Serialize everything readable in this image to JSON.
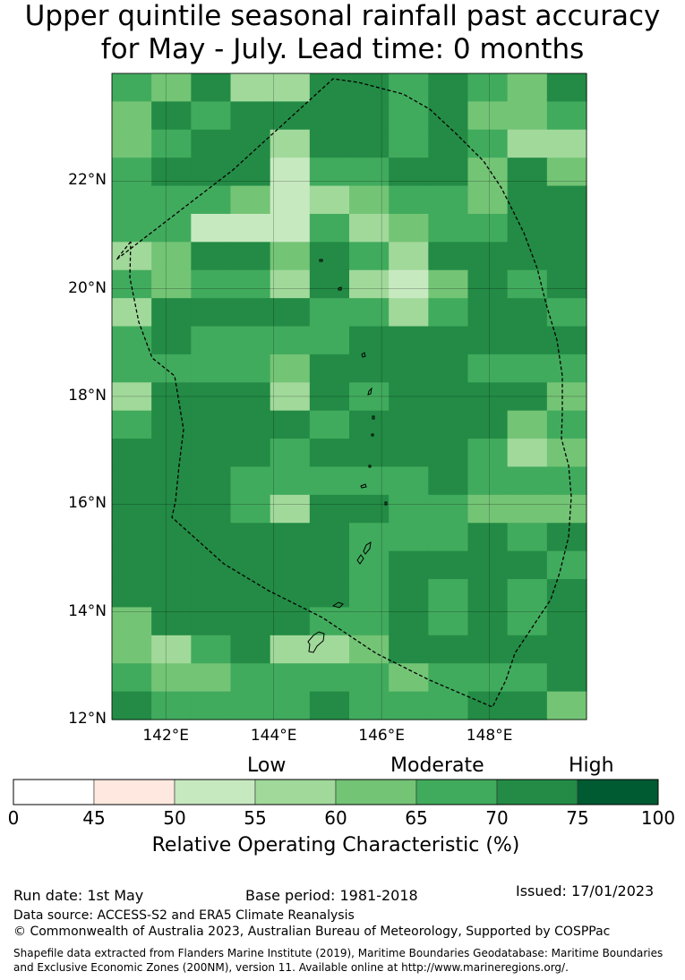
{
  "title": {
    "line1": "Upper quintile seasonal rainfall past accuracy",
    "line2": "for May - July. Lead time: 0 months"
  },
  "map": {
    "lat_labels": [
      "22°N",
      "20°N",
      "18°N",
      "16°N",
      "14°N",
      "12°N"
    ],
    "lon_labels": [
      "142°E",
      "144°E",
      "146°E",
      "148°E"
    ],
    "grid": [
      [
        5,
        4,
        6,
        3,
        3,
        6,
        6,
        5,
        6,
        5,
        4,
        6
      ],
      [
        4,
        6,
        5,
        6,
        6,
        6,
        6,
        5,
        6,
        4,
        4,
        5
      ],
      [
        4,
        5,
        6,
        6,
        3,
        6,
        6,
        5,
        6,
        5,
        3,
        3
      ],
      [
        5,
        6,
        6,
        6,
        2,
        5,
        5,
        6,
        6,
        4,
        6,
        4
      ],
      [
        5,
        5,
        5,
        4,
        2,
        3,
        4,
        5,
        5,
        4,
        6,
        6
      ],
      [
        5,
        5,
        2,
        2,
        2,
        5,
        3,
        4,
        5,
        5,
        6,
        6
      ],
      [
        3,
        4,
        6,
        6,
        4,
        6,
        5,
        3,
        6,
        6,
        6,
        6
      ],
      [
        5,
        4,
        5,
        5,
        3,
        6,
        3,
        2,
        4,
        6,
        5,
        6
      ],
      [
        3,
        6,
        6,
        6,
        6,
        5,
        5,
        3,
        5,
        6,
        6,
        5
      ],
      [
        5,
        6,
        5,
        5,
        5,
        5,
        6,
        6,
        6,
        6,
        6,
        6
      ],
      [
        5,
        5,
        5,
        5,
        4,
        6,
        6,
        6,
        6,
        5,
        5,
        5
      ],
      [
        3,
        6,
        6,
        6,
        3,
        6,
        5,
        6,
        6,
        6,
        6,
        4
      ],
      [
        5,
        6,
        6,
        6,
        6,
        5,
        6,
        6,
        6,
        6,
        4,
        5
      ],
      [
        6,
        6,
        6,
        6,
        5,
        6,
        6,
        6,
        6,
        5,
        3,
        4
      ],
      [
        6,
        6,
        6,
        5,
        5,
        5,
        5,
        5,
        6,
        5,
        5,
        5
      ],
      [
        6,
        6,
        6,
        5,
        3,
        6,
        6,
        5,
        5,
        4,
        4,
        4
      ],
      [
        6,
        6,
        6,
        6,
        6,
        6,
        5,
        5,
        5,
        6,
        5,
        6
      ],
      [
        6,
        6,
        6,
        6,
        6,
        6,
        5,
        6,
        6,
        6,
        6,
        5
      ],
      [
        6,
        6,
        6,
        6,
        6,
        6,
        5,
        6,
        5,
        6,
        5,
        6
      ],
      [
        4,
        6,
        6,
        6,
        6,
        5,
        5,
        6,
        5,
        6,
        5,
        6
      ],
      [
        4,
        3,
        5,
        6,
        3,
        3,
        4,
        6,
        6,
        6,
        6,
        6
      ],
      [
        5,
        4,
        4,
        5,
        5,
        5,
        5,
        4,
        5,
        5,
        5,
        6
      ],
      [
        6,
        5,
        5,
        5,
        5,
        6,
        5,
        5,
        5,
        6,
        6,
        4
      ]
    ],
    "boundary_label": "Exclusive Economic Zone (200NM)"
  },
  "colorbar": {
    "category_words": [
      "Low",
      "Moderate",
      "High"
    ],
    "ticks": [
      "0",
      "45",
      "50",
      "55",
      "60",
      "65",
      "70",
      "75",
      "100"
    ],
    "colors": [
      "#ffffff",
      "#fee8df",
      "#c7e9c0",
      "#a1d99b",
      "#74c476",
      "#41ab5d",
      "#238b45",
      "#005a32"
    ],
    "label": "Relative Operating Characteristic (%)"
  },
  "footer": {
    "run_date": "Run date: 1st May",
    "base_period": "Base period: 1981-2018",
    "issued": "Issued: 17/01/2023",
    "data_source": "Data source: ACCESS-S2 and ERA5 Climate Reanalysis",
    "copyright": "© Commonwealth of Australia 2023, Australian Bureau of Meteorology, Supported by COSPPac",
    "shapefile_line1": "Shapefile data extracted from Flanders Marine Institute (2019), Maritime Boundaries Geodatabase: Maritime Boundaries",
    "shapefile_line2": "and Exclusive Economic Zones (200NM), version 11. Available online at http://www.marineregions.org/."
  }
}
